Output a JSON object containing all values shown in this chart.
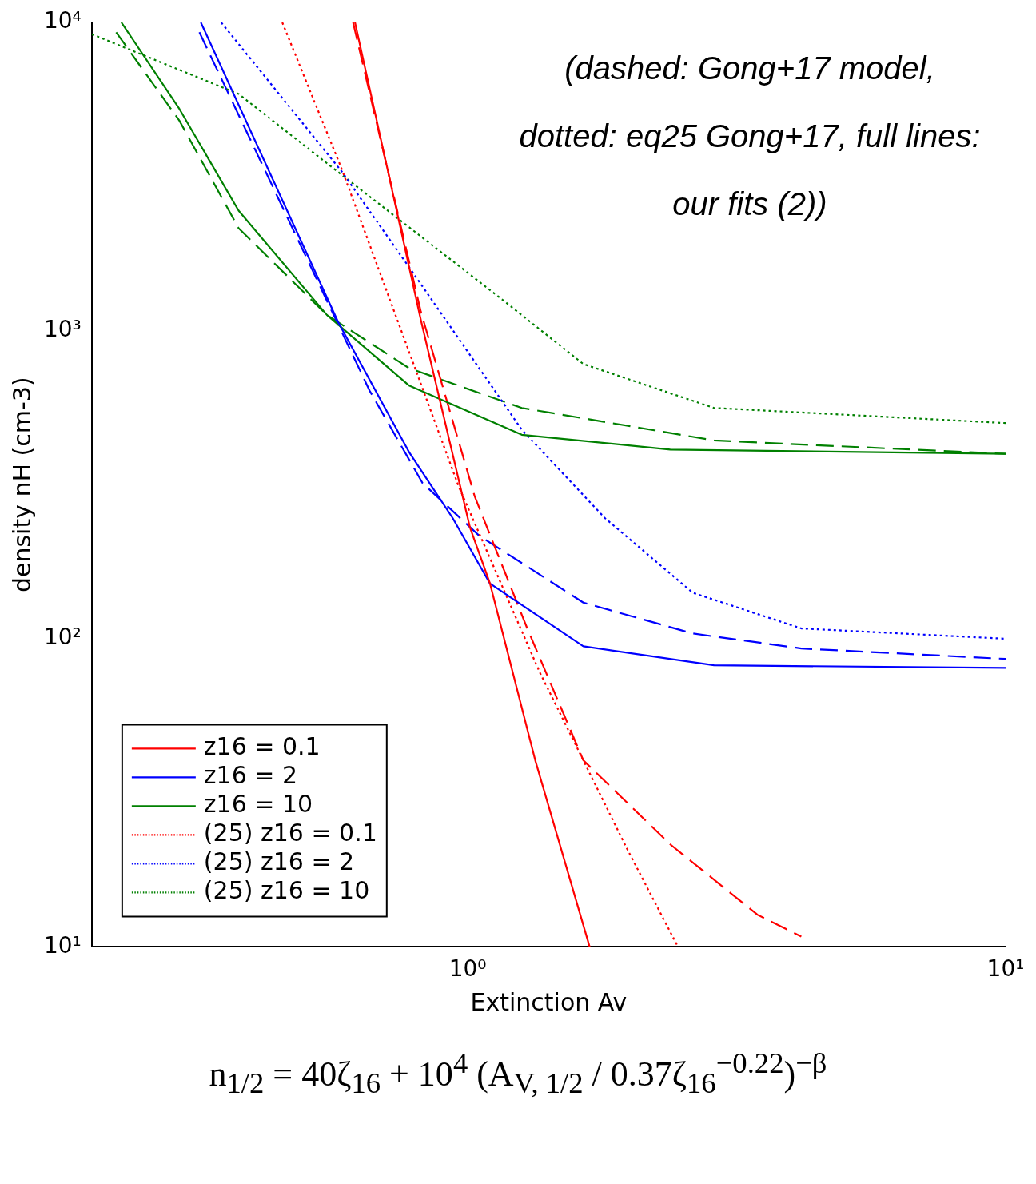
{
  "chart_data": {
    "type": "line",
    "xlabel": "Extinction Av",
    "ylabel": "density nH (cm-3)",
    "log": "xy",
    "grid": false,
    "marker": "none",
    "legend": "bottom left",
    "xlim": [
      0.2,
      10
    ],
    "xticks": [
      {
        "value": 1,
        "label": "10⁰"
      },
      {
        "value": 10,
        "label": "10¹"
      }
    ],
    "ylim": [
      10,
      10000
    ],
    "yticks": [
      {
        "value": 10,
        "label": "10¹"
      },
      {
        "value": 100,
        "label": "10²"
      },
      {
        "value": 1000,
        "label": "10³"
      },
      {
        "value": 10000,
        "label": "10⁴"
      }
    ],
    "annotations": [
      "(dashed: Gong+17 model, dotted: eq25 Gong+17, full lines: our fits (2))",
      "n$_{1/2}$ = 40ζ$_{16}$ + 10$^{4}$ (A$_{V, 1/2}$ / 0.37ζ$_{16}$$^{−0.22}$)$^{−β}$"
    ],
    "series": [
      {
        "name": "z16 = 0.1",
        "color": "#ff0000",
        "line_style": "solid",
        "x": [
          0.617,
          0.818,
          1.01,
          1.1,
          1.335,
          1.685
        ],
        "values": [
          10000,
          1084,
          229,
          151,
          40.3,
          10
        ]
      },
      {
        "name": "z16 = 2",
        "color": "#0000ff",
        "line_style": "solid",
        "x": [
          0.319,
          0.575,
          0.778,
          0.938,
          1.1,
          1.64,
          2.87,
          10
        ],
        "values": [
          10000,
          1060,
          403,
          246,
          151,
          94.5,
          82,
          80.4
        ]
      },
      {
        "name": "z16 = 10",
        "color": "#008000",
        "line_style": "solid",
        "x": [
          0.227,
          0.291,
          0.375,
          0.547,
          0.778,
          1.26,
          2.38,
          10
        ],
        "values": [
          10000,
          5240,
          2449,
          1124,
          663,
          459,
          411,
          398
        ]
      },
      {
        "name": "(25) z16 = 0.1",
        "color": "#ff0000",
        "line_style": "dotted",
        "x": [
          0.452,
          0.583,
          0.962,
          1.36,
          1.975,
          2.46
        ],
        "values": [
          10000,
          3343,
          312,
          78,
          20.9,
          10
        ]
      },
      {
        "name": "(25) z16 = 2",
        "color": "#0000ff",
        "line_style": "dotted",
        "x": [
          0.348,
          0.583,
          0.798,
          1.26,
          1.8,
          2.62,
          4.17,
          10
        ],
        "values": [
          10000,
          3282,
          1507,
          477,
          246,
          141,
          108,
          100
        ]
      },
      {
        "name": "(25) z16 = 10",
        "color": "#008000",
        "line_style": "dotted",
        "x": [
          0.2,
          0.375,
          0.583,
          1.16,
          1.64,
          2.87,
          10
        ],
        "values": [
          9160,
          5860,
          3200,
          1259,
          779,
          561,
          501
        ]
      },
      {
        "color": "#ff0000",
        "line_style": "dashed",
        "x": [
          0.612,
          0.818,
          1.03,
          1.29,
          1.64,
          2.38,
          3.46,
          4.17
        ],
        "values": [
          10000,
          1153,
          290,
          108,
          40.3,
          21.5,
          12.7,
          10.8
        ]
      },
      {
        "color": "#0000ff",
        "line_style": "dashed",
        "x": [
          0.317,
          0.657,
          0.824,
          1.05,
          1.64,
          2.62,
          4.17,
          10
        ],
        "values": [
          9290,
          638,
          320,
          216,
          131,
          104,
          93,
          86
        ]
      },
      {
        "color": "#008000",
        "line_style": "dashed",
        "x": [
          0.222,
          0.291,
          0.375,
          0.547,
          0.778,
          1.26,
          2.87,
          10
        ],
        "values": [
          9290,
          4800,
          2148,
          1124,
          755,
          561,
          440,
          398
        ]
      }
    ]
  }
}
